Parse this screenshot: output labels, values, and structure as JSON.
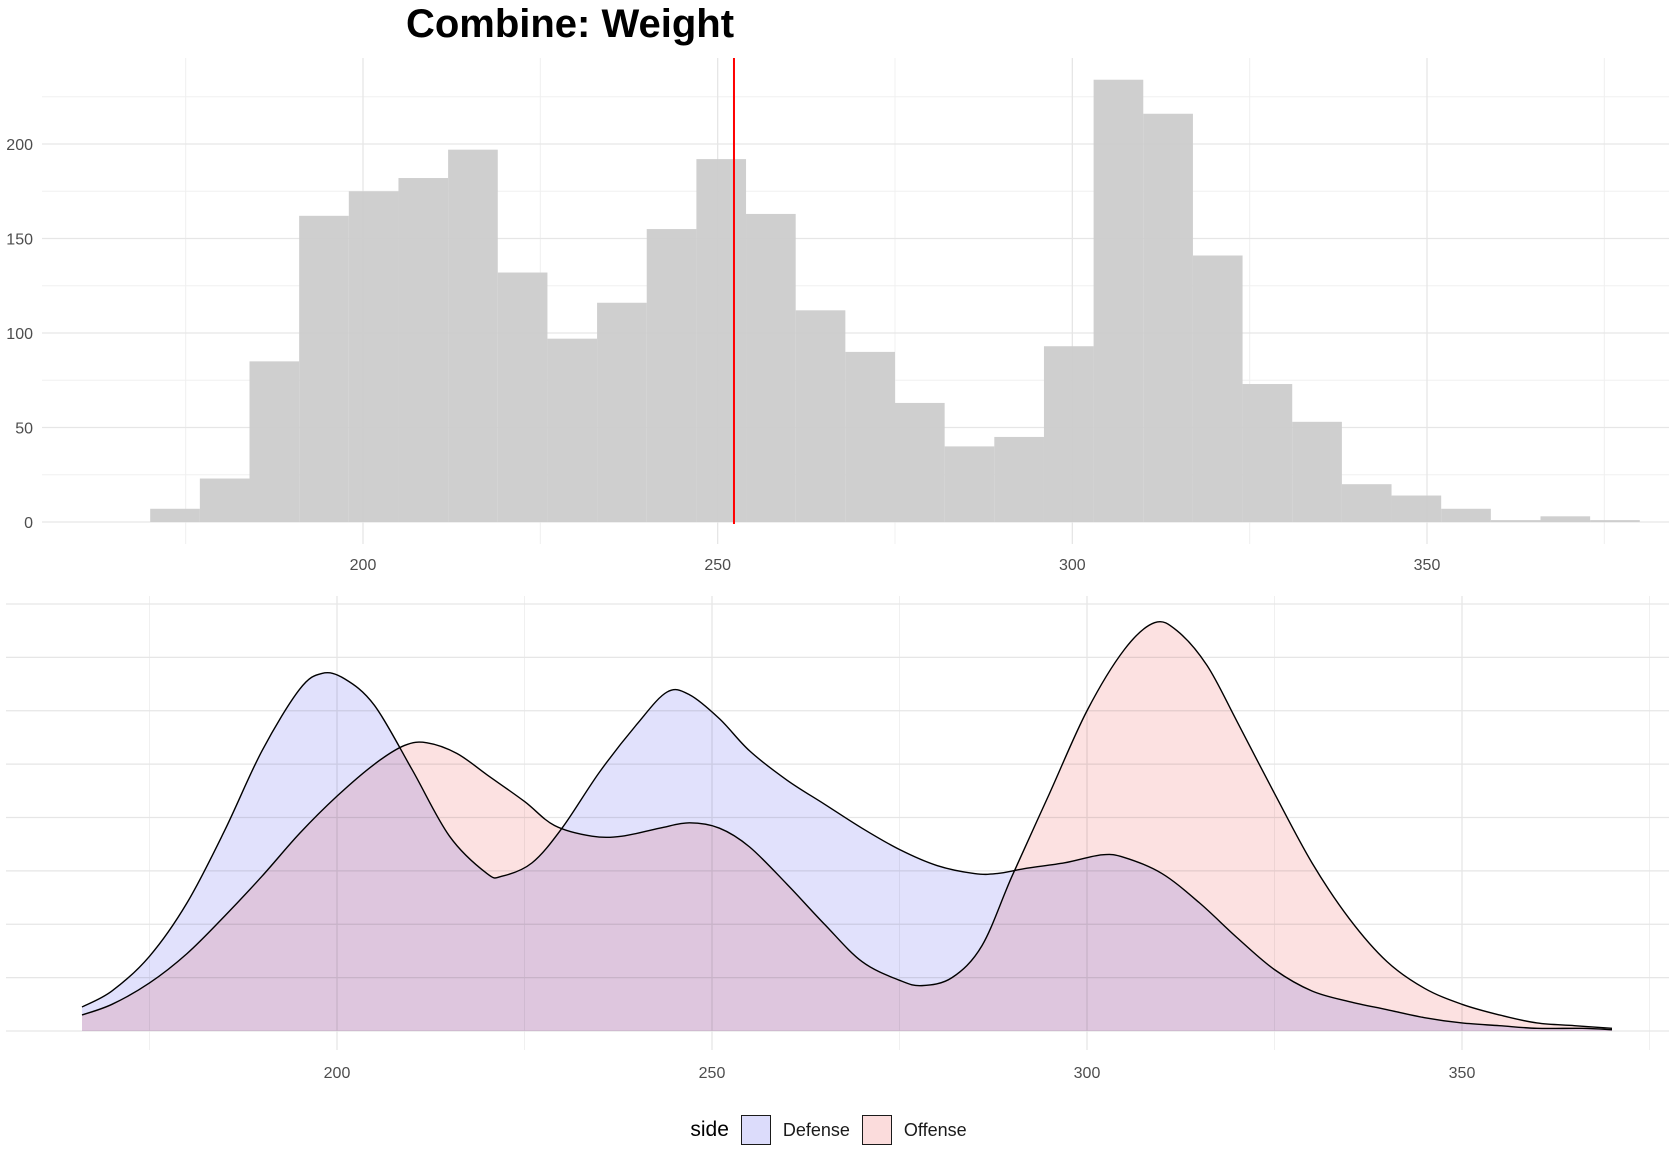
{
  "chart_data": [
    {
      "type": "histogram",
      "title": "Combine: Weight",
      "xlabel": "",
      "ylabel": "",
      "xlim": [
        160,
        385
      ],
      "ylim": [
        0,
        240
      ],
      "x_ticks": [
        200,
        250,
        300,
        350
      ],
      "y_ticks": [
        0,
        50,
        100,
        150,
        200
      ],
      "bin_width": 7,
      "bar_color": "#cccccc",
      "bins": [
        {
          "x0": 170,
          "x1": 177,
          "count": 7
        },
        {
          "x0": 177,
          "x1": 184,
          "count": 23
        },
        {
          "x0": 184,
          "x1": 191,
          "count": 85
        },
        {
          "x0": 191,
          "x1": 198,
          "count": 162
        },
        {
          "x0": 198,
          "x1": 205,
          "count": 175
        },
        {
          "x0": 205,
          "x1": 212,
          "count": 182
        },
        {
          "x0": 212,
          "x1": 219,
          "count": 197
        },
        {
          "x0": 219,
          "x1": 226,
          "count": 132
        },
        {
          "x0": 226,
          "x1": 233,
          "count": 97
        },
        {
          "x0": 233,
          "x1": 240,
          "count": 116
        },
        {
          "x0": 240,
          "x1": 247,
          "count": 155
        },
        {
          "x0": 247,
          "x1": 254,
          "count": 192
        },
        {
          "x0": 254,
          "x1": 261,
          "count": 163
        },
        {
          "x0": 261,
          "x1": 268,
          "count": 112
        },
        {
          "x0": 268,
          "x1": 275,
          "count": 90
        },
        {
          "x0": 275,
          "x1": 282,
          "count": 63
        },
        {
          "x0": 282,
          "x1": 289,
          "count": 40
        },
        {
          "x0": 289,
          "x1": 296,
          "count": 45
        },
        {
          "x0": 296,
          "x1": 303,
          "count": 93
        },
        {
          "x0": 303,
          "x1": 310,
          "count": 234
        },
        {
          "x0": 310,
          "x1": 317,
          "count": 216
        },
        {
          "x0": 317,
          "x1": 324,
          "count": 141
        },
        {
          "x0": 324,
          "x1": 331,
          "count": 73
        },
        {
          "x0": 331,
          "x1": 338,
          "count": 53
        },
        {
          "x0": 338,
          "x1": 345,
          "count": 20
        },
        {
          "x0": 345,
          "x1": 352,
          "count": 14
        },
        {
          "x0": 352,
          "x1": 359,
          "count": 7
        },
        {
          "x0": 359,
          "x1": 366,
          "count": 1
        },
        {
          "x0": 366,
          "x1": 373,
          "count": 3
        },
        {
          "x0": 373,
          "x1": 380,
          "count": 1
        }
      ],
      "vline": {
        "x": 252.3,
        "color": "#ff0000"
      }
    },
    {
      "type": "area",
      "subtype": "density",
      "xlabel": "",
      "ylabel": "",
      "xlim": [
        155,
        380
      ],
      "ylim": [
        0,
        0.0158
      ],
      "x_ticks": [
        200,
        250,
        300,
        350
      ],
      "y_gridlines": [
        0,
        0.002,
        0.004,
        0.006,
        0.008,
        0.01,
        0.012,
        0.014,
        0.016
      ],
      "series": [
        {
          "name": "Defense",
          "fill": "#dcdcfb",
          "fill_opacity": 0.85,
          "points": [
            [
              166,
              0.0009
            ],
            [
              170,
              0.0015
            ],
            [
              175,
              0.0028
            ],
            [
              180,
              0.0048
            ],
            [
              185,
              0.0075
            ],
            [
              190,
              0.0105
            ],
            [
              195,
              0.0128
            ],
            [
              198,
              0.0134
            ],
            [
              201,
              0.0132
            ],
            [
              205,
              0.0122
            ],
            [
              210,
              0.0098
            ],
            [
              215,
              0.0073
            ],
            [
              220,
              0.0059
            ],
            [
              222,
              0.0058
            ],
            [
              226,
              0.0063
            ],
            [
              230,
              0.0076
            ],
            [
              235,
              0.0097
            ],
            [
              240,
              0.0115
            ],
            [
              244,
              0.0127
            ],
            [
              247,
              0.0126
            ],
            [
              251,
              0.0117
            ],
            [
              255,
              0.0105
            ],
            [
              260,
              0.0094
            ],
            [
              265,
              0.0085
            ],
            [
              270,
              0.0076
            ],
            [
              275,
              0.0068
            ],
            [
              280,
              0.0062
            ],
            [
              285,
              0.0059
            ],
            [
              288,
              0.0059
            ],
            [
              292,
              0.0061
            ],
            [
              297,
              0.0063
            ],
            [
              302,
              0.0066
            ],
            [
              305,
              0.0065
            ],
            [
              310,
              0.0059
            ],
            [
              315,
              0.0048
            ],
            [
              320,
              0.0035
            ],
            [
              325,
              0.0023
            ],
            [
              330,
              0.0015
            ],
            [
              335,
              0.0011
            ],
            [
              340,
              0.0008
            ],
            [
              345,
              0.0005
            ],
            [
              350,
              0.0003
            ],
            [
              355,
              0.0002
            ],
            [
              360,
              0.0001
            ],
            [
              366,
              0.0001
            ],
            [
              370,
              5e-05
            ]
          ]
        },
        {
          "name": "Offense",
          "fill": "#fbdcdc",
          "fill_opacity": 0.85,
          "points": [
            [
              166,
              0.0006
            ],
            [
              170,
              0.001
            ],
            [
              175,
              0.0018
            ],
            [
              180,
              0.0029
            ],
            [
              185,
              0.0043
            ],
            [
              190,
              0.0058
            ],
            [
              195,
              0.0074
            ],
            [
              200,
              0.0088
            ],
            [
              205,
              0.01
            ],
            [
              209,
              0.0107
            ],
            [
              212,
              0.0108
            ],
            [
              216,
              0.0104
            ],
            [
              220,
              0.0096
            ],
            [
              225,
              0.0086
            ],
            [
              229,
              0.0077
            ],
            [
              234,
              0.0073
            ],
            [
              238,
              0.0073
            ],
            [
              243,
              0.0076
            ],
            [
              247,
              0.0078
            ],
            [
              251,
              0.0076
            ],
            [
              255,
              0.0069
            ],
            [
              260,
              0.0055
            ],
            [
              265,
              0.004
            ],
            [
              270,
              0.0026
            ],
            [
              275,
              0.0019
            ],
            [
              278,
              0.0017
            ],
            [
              282,
              0.002
            ],
            [
              286,
              0.0032
            ],
            [
              290,
              0.0058
            ],
            [
              295,
              0.0089
            ],
            [
              300,
              0.012
            ],
            [
              305,
              0.0143
            ],
            [
              309,
              0.0153
            ],
            [
              312,
              0.015
            ],
            [
              316,
              0.0137
            ],
            [
              320,
              0.0116
            ],
            [
              325,
              0.0089
            ],
            [
              330,
              0.0063
            ],
            [
              335,
              0.0042
            ],
            [
              340,
              0.0026
            ],
            [
              345,
              0.0016
            ],
            [
              350,
              0.001
            ],
            [
              355,
              0.0006
            ],
            [
              360,
              0.0003
            ],
            [
              365,
              0.0002
            ],
            [
              370,
              0.0001
            ]
          ]
        }
      ],
      "legend": {
        "title": "side",
        "position": "bottom"
      }
    }
  ]
}
